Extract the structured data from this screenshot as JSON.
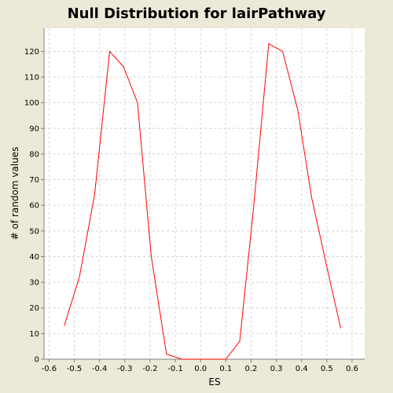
{
  "chart_data": {
    "type": "line",
    "title": "Null Distribution for lairPathway",
    "xlabel": "ES",
    "ylabel": "# of random values",
    "xlim": [
      -0.62,
      0.65
    ],
    "ylim": [
      0,
      129
    ],
    "xticks": [
      "-0.6",
      "-0.5",
      "-0.4",
      "-0.3",
      "-0.2",
      "-0.1",
      "0.0",
      "0.1",
      "0.2",
      "0.3",
      "0.4",
      "0.5",
      "0.6"
    ],
    "xtick_values": [
      -0.6,
      -0.5,
      -0.4,
      -0.3,
      -0.2,
      -0.1,
      0.0,
      0.1,
      0.2,
      0.3,
      0.4,
      0.5,
      0.6
    ],
    "yticks": [
      "0",
      "10",
      "20",
      "30",
      "40",
      "50",
      "60",
      "70",
      "80",
      "90",
      "100",
      "110",
      "120"
    ],
    "ytick_values": [
      0,
      10,
      20,
      30,
      40,
      50,
      60,
      70,
      80,
      90,
      100,
      110,
      120
    ],
    "grid": true,
    "line_color": "#ff0000",
    "background": "#ece9d8",
    "plot_background": "#ffffff",
    "series": [
      {
        "x": [
          -0.54,
          -0.48,
          -0.42,
          -0.36,
          -0.305,
          -0.25,
          -0.195,
          -0.135,
          -0.075,
          -0.02,
          0.04,
          0.1,
          0.155,
          0.21,
          0.27,
          0.325,
          0.385,
          0.44,
          0.5,
          0.555
        ],
        "y": [
          13,
          32,
          64,
          120,
          114,
          100,
          40,
          2,
          0,
          0,
          0,
          0,
          7,
          59,
          123,
          120,
          97,
          63,
          36,
          12
        ]
      }
    ]
  }
}
